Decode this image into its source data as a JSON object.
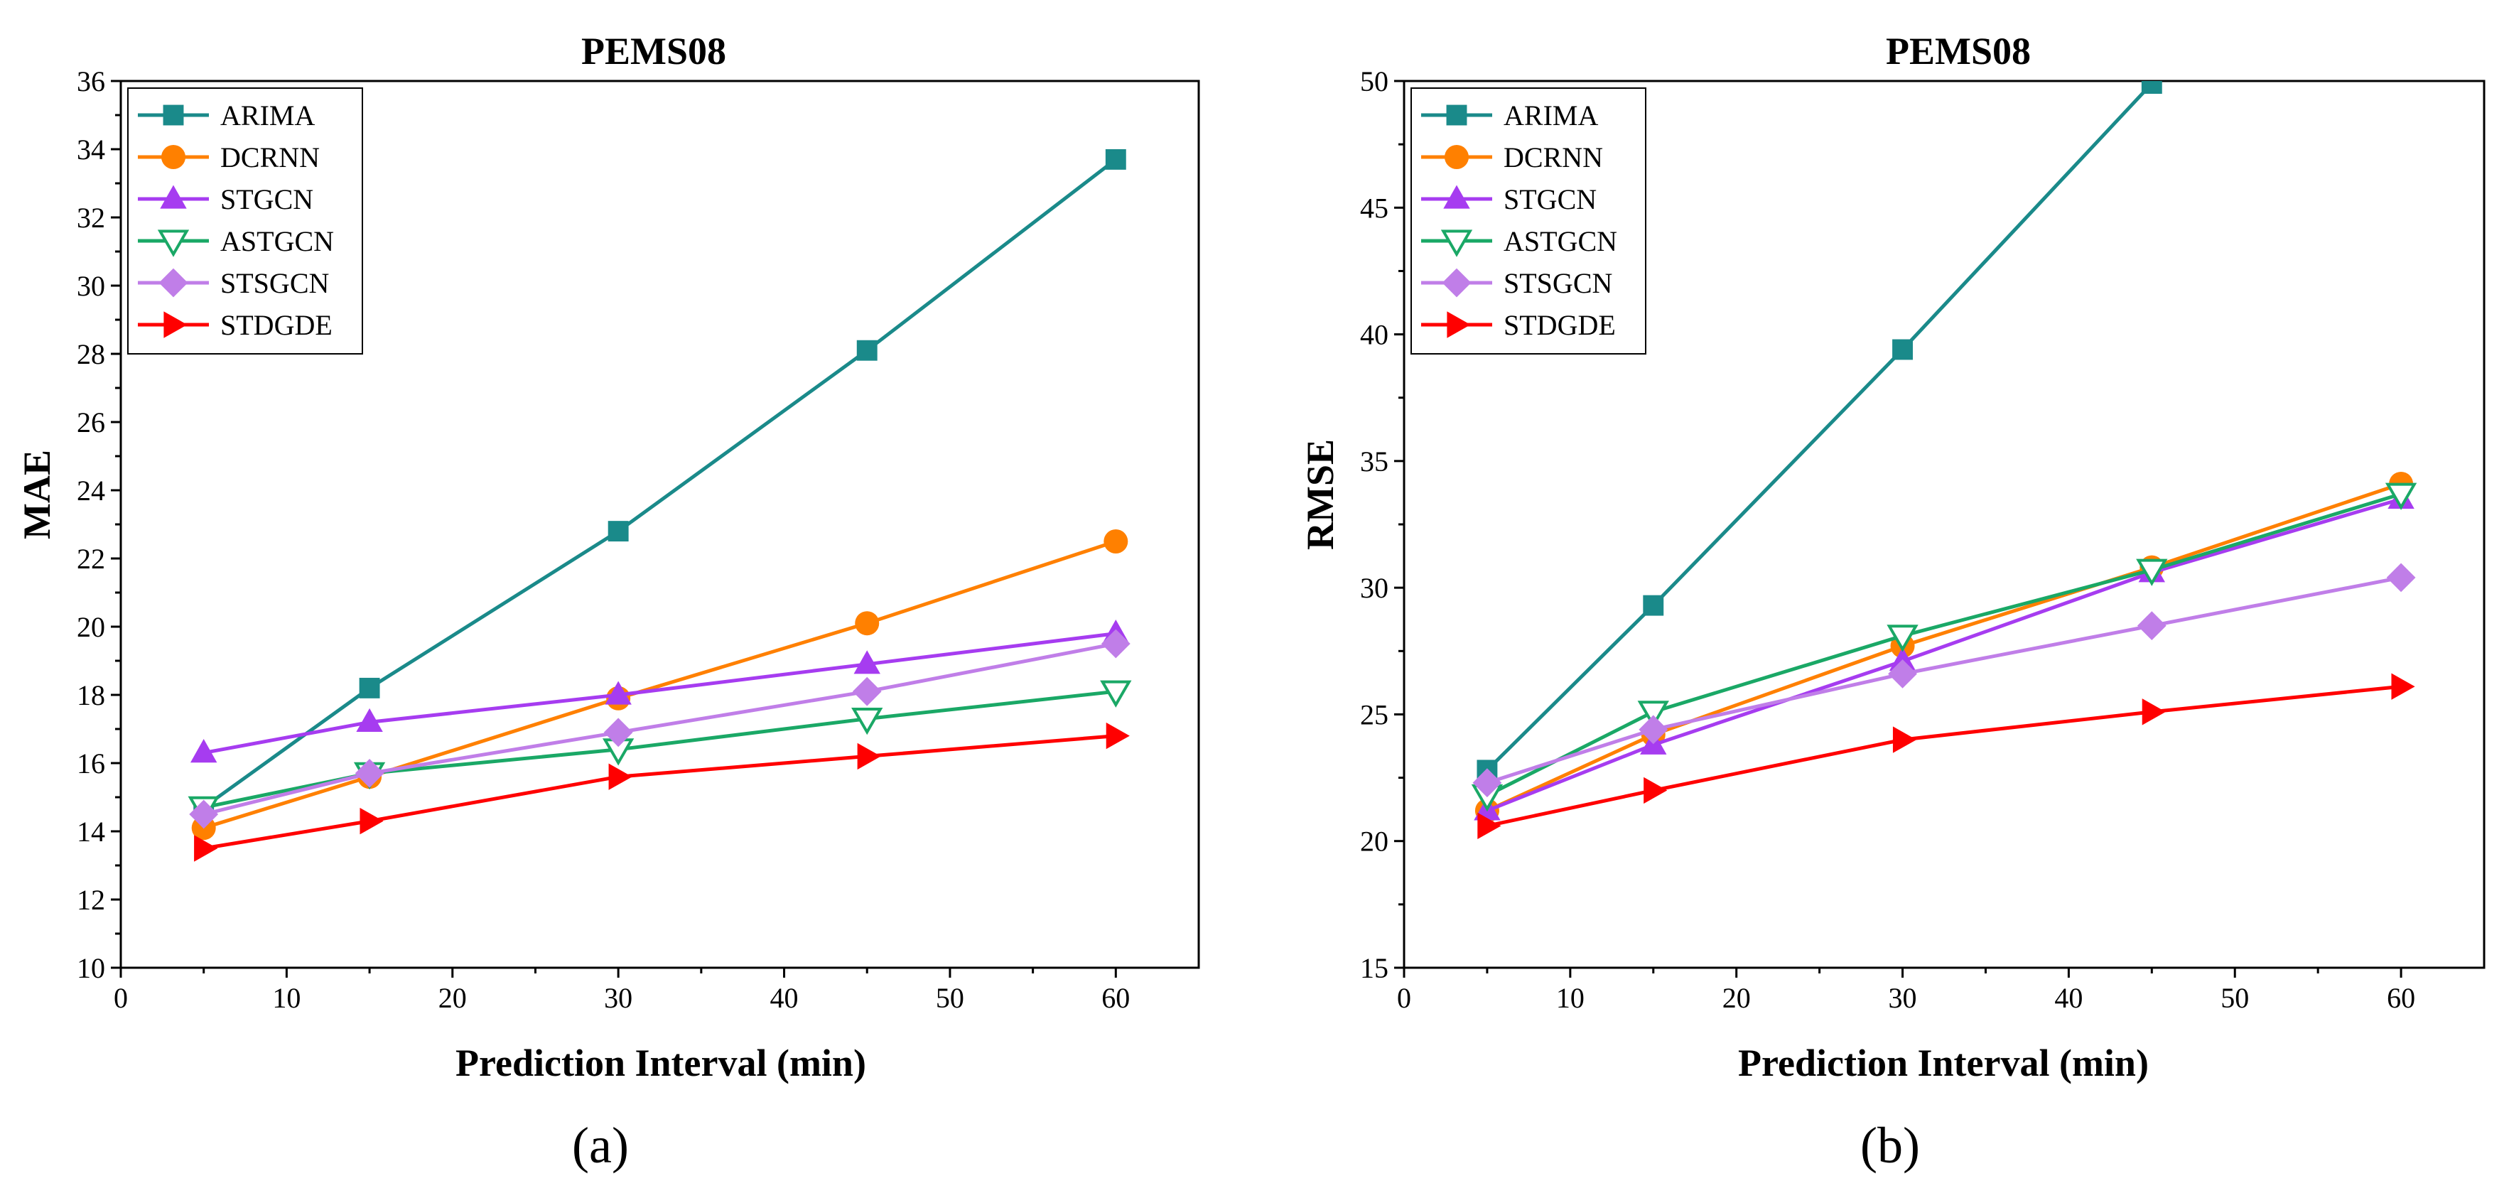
{
  "chart_data": [
    {
      "type": "line",
      "panel_label": "(a)",
      "title": "PEMS08",
      "xlabel": "Prediction Interval (min)",
      "ylabel": "MAE",
      "xlim": [
        0,
        65
      ],
      "ylim": [
        10,
        36
      ],
      "xticks": [
        0,
        10,
        20,
        30,
        40,
        50,
        60
      ],
      "yticks": [
        10,
        12,
        14,
        16,
        18,
        20,
        22,
        24,
        26,
        28,
        30,
        32,
        34,
        36
      ],
      "x": [
        5,
        15,
        30,
        45,
        60
      ],
      "legend_position": "top-left",
      "series": [
        {
          "name": "ARIMA",
          "color": "#1a8a8a",
          "marker": "square",
          "values": [
            14.7,
            18.2,
            22.8,
            28.1,
            33.7
          ]
        },
        {
          "name": "DCRNN",
          "color": "#ff8000",
          "marker": "circle",
          "values": [
            14.1,
            15.6,
            17.9,
            20.1,
            22.5
          ]
        },
        {
          "name": "STGCN",
          "color": "#a63cf0",
          "marker": "triangle-up",
          "values": [
            16.3,
            17.2,
            18.0,
            18.9,
            19.8
          ]
        },
        {
          "name": "ASTGCN",
          "color": "#1aa866",
          "marker": "triangle-down",
          "values": [
            14.7,
            15.7,
            16.4,
            17.3,
            18.1
          ]
        },
        {
          "name": "STSGCN",
          "color": "#c07ee8",
          "marker": "diamond",
          "values": [
            14.5,
            15.7,
            16.9,
            18.1,
            19.5
          ]
        },
        {
          "name": "STDGDE",
          "color": "#ff0000",
          "marker": "triangle-right",
          "values": [
            13.5,
            14.3,
            15.6,
            16.2,
            16.8
          ]
        }
      ]
    },
    {
      "type": "line",
      "panel_label": "(b)",
      "title": "PEMS08",
      "xlabel": "Prediction Interval (min)",
      "ylabel": "RMSE",
      "xlim": [
        0,
        65
      ],
      "ylim": [
        15,
        50
      ],
      "xticks": [
        0,
        10,
        20,
        30,
        40,
        50,
        60
      ],
      "yticks": [
        15,
        20,
        25,
        30,
        35,
        40,
        45,
        50
      ],
      "x": [
        5,
        15,
        30,
        45,
        60
      ],
      "legend_position": "top-left",
      "series": [
        {
          "name": "ARIMA",
          "color": "#1a8a8a",
          "marker": "square",
          "values": [
            22.8,
            29.3,
            39.4,
            49.9,
            null
          ]
        },
        {
          "name": "DCRNN",
          "color": "#ff8000",
          "marker": "circle",
          "values": [
            21.2,
            24.2,
            27.7,
            30.8,
            34.1
          ]
        },
        {
          "name": "STGCN",
          "color": "#a63cf0",
          "marker": "triangle-up",
          "values": [
            21.2,
            23.8,
            27.1,
            30.6,
            33.5
          ]
        },
        {
          "name": "ASTGCN",
          "color": "#1aa866",
          "marker": "triangle-down",
          "values": [
            21.8,
            25.1,
            28.1,
            30.7,
            33.7
          ]
        },
        {
          "name": "STSGCN",
          "color": "#c07ee8",
          "marker": "diamond",
          "values": [
            22.3,
            24.4,
            26.6,
            28.5,
            30.4
          ]
        },
        {
          "name": "STDGDE",
          "color": "#ff0000",
          "marker": "triangle-right",
          "values": [
            20.6,
            22.0,
            24.0,
            25.1,
            26.1
          ]
        }
      ]
    }
  ]
}
